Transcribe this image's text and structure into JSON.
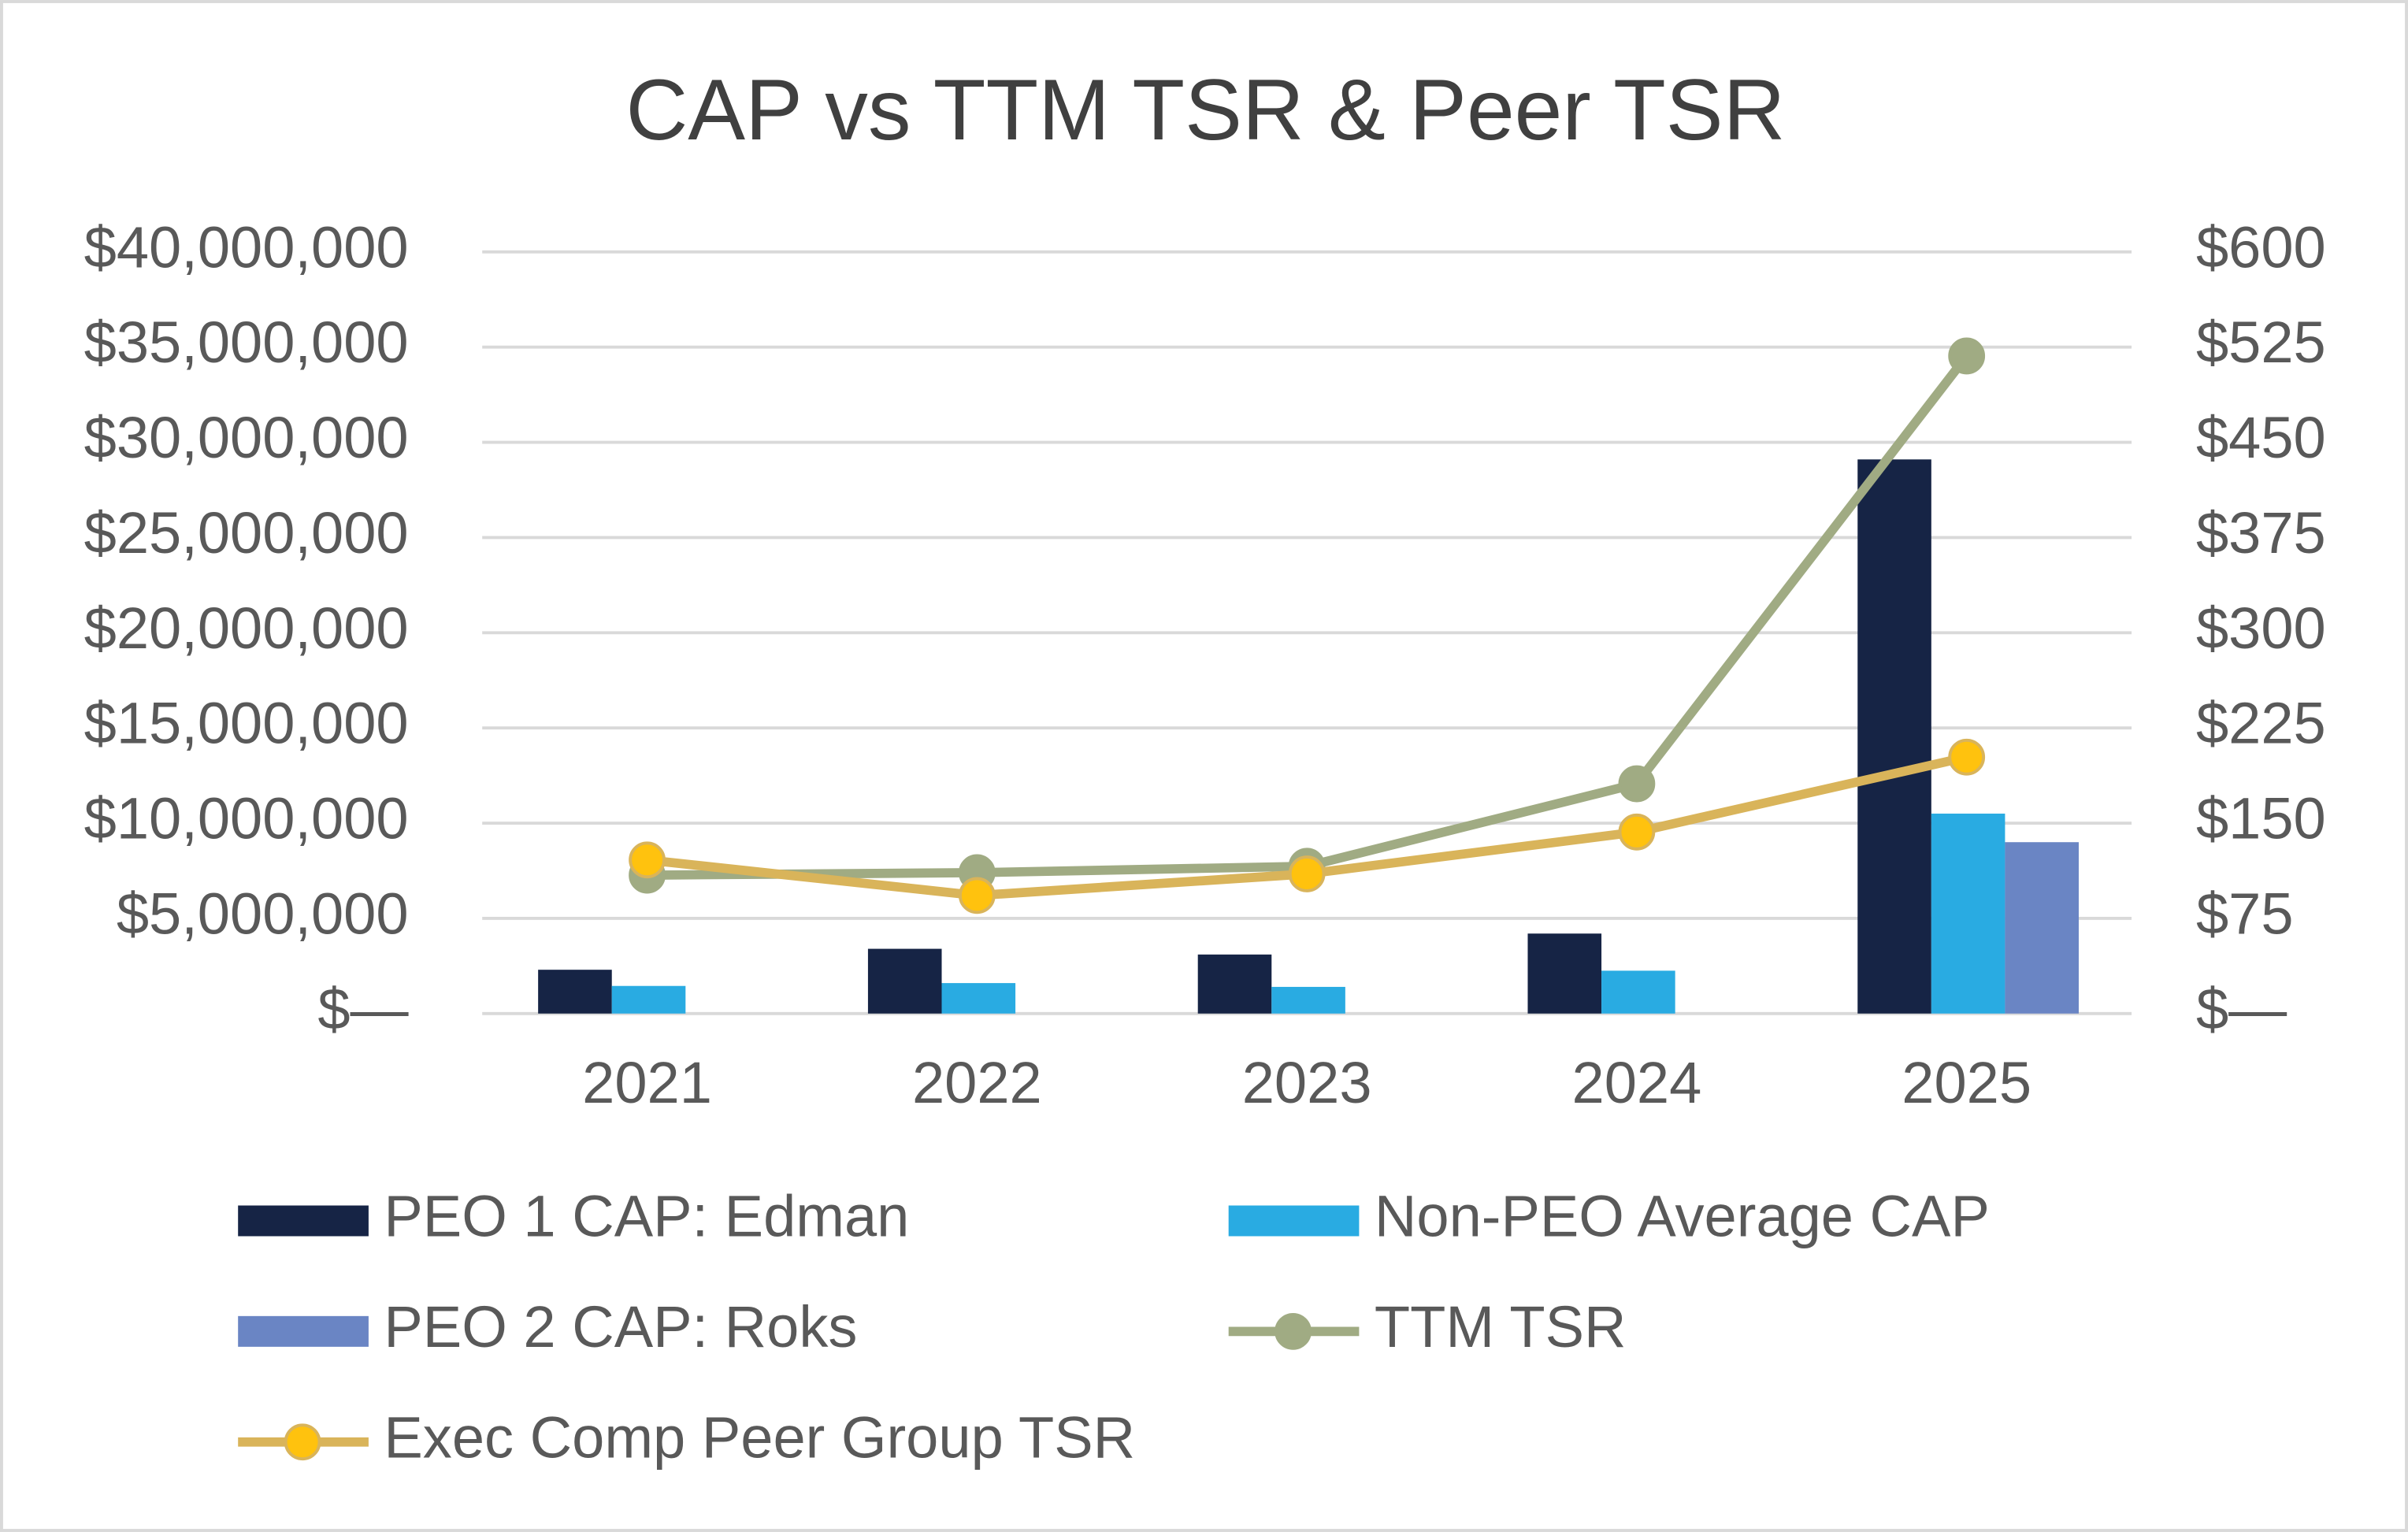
{
  "chart_data": {
    "type": "bar",
    "title": "CAP vs TTM TSR & Peer TSR",
    "categories": [
      "2021",
      "2022",
      "2023",
      "2024",
      "2025"
    ],
    "series": [
      {
        "name": "PEO 1 CAP: Edman",
        "type": "bar",
        "color": "#162445",
        "values": [
          2300000,
          3400000,
          3100000,
          4200000,
          29100000
        ]
      },
      {
        "name": "Non-PEO Average CAP",
        "type": "bar",
        "color": "#29abe2",
        "values": [
          1450000,
          1600000,
          1400000,
          2250000,
          10500000
        ]
      },
      {
        "name": "PEO 2 CAP: Roks",
        "type": "bar",
        "color": "#6a85c4",
        "values": [
          null,
          null,
          null,
          null,
          9000000
        ]
      },
      {
        "name": "TTM TSR",
        "type": "line",
        "axis": "y2",
        "color": "#a0ab83",
        "marker_color": "#a0ab83",
        "values": [
          109,
          111,
          116,
          181,
          518
        ]
      },
      {
        "name": "Exec Comp Peer Group TSR",
        "type": "line",
        "axis": "y2",
        "color": "#d9b45a",
        "marker_color": "#ffc20e",
        "values": [
          121,
          93,
          110,
          143,
          202
        ]
      }
    ],
    "ylim": [
      0,
      40000000
    ],
    "yticks": [
      {
        "value": 0,
        "label": "$—"
      },
      {
        "value": 5000000,
        "label": "$5,000,000"
      },
      {
        "value": 10000000,
        "label": "$10,000,000"
      },
      {
        "value": 15000000,
        "label": "$15,000,000"
      },
      {
        "value": 20000000,
        "label": "$20,000,000"
      },
      {
        "value": 25000000,
        "label": "$25,000,000"
      },
      {
        "value": 30000000,
        "label": "$30,000,000"
      },
      {
        "value": 35000000,
        "label": "$35,000,000"
      },
      {
        "value": 40000000,
        "label": "$40,000,000"
      }
    ],
    "y2lim": [
      0,
      600
    ],
    "y2ticks": [
      {
        "value": 0,
        "label": "$—"
      },
      {
        "value": 75,
        "label": "$75"
      },
      {
        "value": 150,
        "label": "$150"
      },
      {
        "value": 225,
        "label": "$225"
      },
      {
        "value": 300,
        "label": "$300"
      },
      {
        "value": 375,
        "label": "$375"
      },
      {
        "value": 450,
        "label": "$450"
      },
      {
        "value": 525,
        "label": "$525"
      },
      {
        "value": 600,
        "label": "$600"
      }
    ],
    "grid": true,
    "legend": "bottom"
  }
}
